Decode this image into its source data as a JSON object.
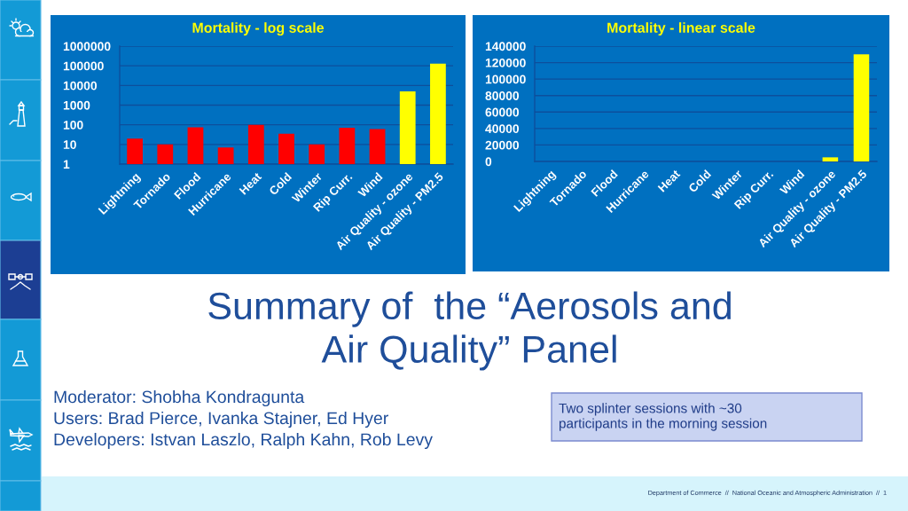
{
  "chart_data": [
    {
      "type": "bar",
      "title": "Mortality - log scale",
      "categories": [
        "Lightning",
        "Tornado",
        "Flood",
        "Hurricane",
        "Heat",
        "Cold",
        "Winter",
        "Rip Curr.",
        "Wind",
        "Air Quality - ozone",
        "Air Quality - PM2.5"
      ],
      "values": [
        20,
        10,
        75,
        7,
        100,
        35,
        10,
        70,
        60,
        5000,
        130000
      ],
      "colors": [
        "#ff0000",
        "#ff0000",
        "#ff0000",
        "#ff0000",
        "#ff0000",
        "#ff0000",
        "#ff0000",
        "#ff0000",
        "#ff0000",
        "#ffff00",
        "#ffff00"
      ],
      "log": true,
      "ylim": [
        1,
        1000000
      ],
      "yticks": [
        1,
        10,
        100,
        1000,
        10000,
        100000,
        1000000
      ],
      "grid": "y"
    },
    {
      "type": "bar",
      "title": "Mortality - linear scale",
      "categories": [
        "Lightning",
        "Tornado",
        "Flood",
        "Hurricane",
        "Heat",
        "Cold",
        "Winter",
        "Rip Curr.",
        "Wind",
        "Air Quality - ozone",
        "Air Quality - PM2.5"
      ],
      "values": [
        0,
        0,
        0,
        0,
        0,
        0,
        0,
        0,
        0,
        5000,
        130000
      ],
      "colors": [
        "#ff0000",
        "#ff0000",
        "#ff0000",
        "#ff0000",
        "#ff0000",
        "#ff0000",
        "#ff0000",
        "#ff0000",
        "#ff0000",
        "#ffff00",
        "#ffff00"
      ],
      "ylim": [
        0,
        140000
      ],
      "yticks": [
        0,
        20000,
        40000,
        60000,
        80000,
        100000,
        120000,
        140000
      ],
      "grid": "y"
    },
    {
      "type": "other",
      "title": "Summary of  the “Aerosols and\nAir Quality” Panel",
      "annotations": [
        "Moderator: Shobha Kondragunta",
        "Users: Brad Pierce, Ivanka Stajner, Ed Hyer",
        "Developers: Istvan Laszlo, Ralph Kahn, Rob Levy",
        "Two splinter sessions with ~30\nparticipants in the morning session",
        "Department of Commerce  //  National Oceanic and Atmospheric Administration  //  1"
      ]
    }
  ]
}
